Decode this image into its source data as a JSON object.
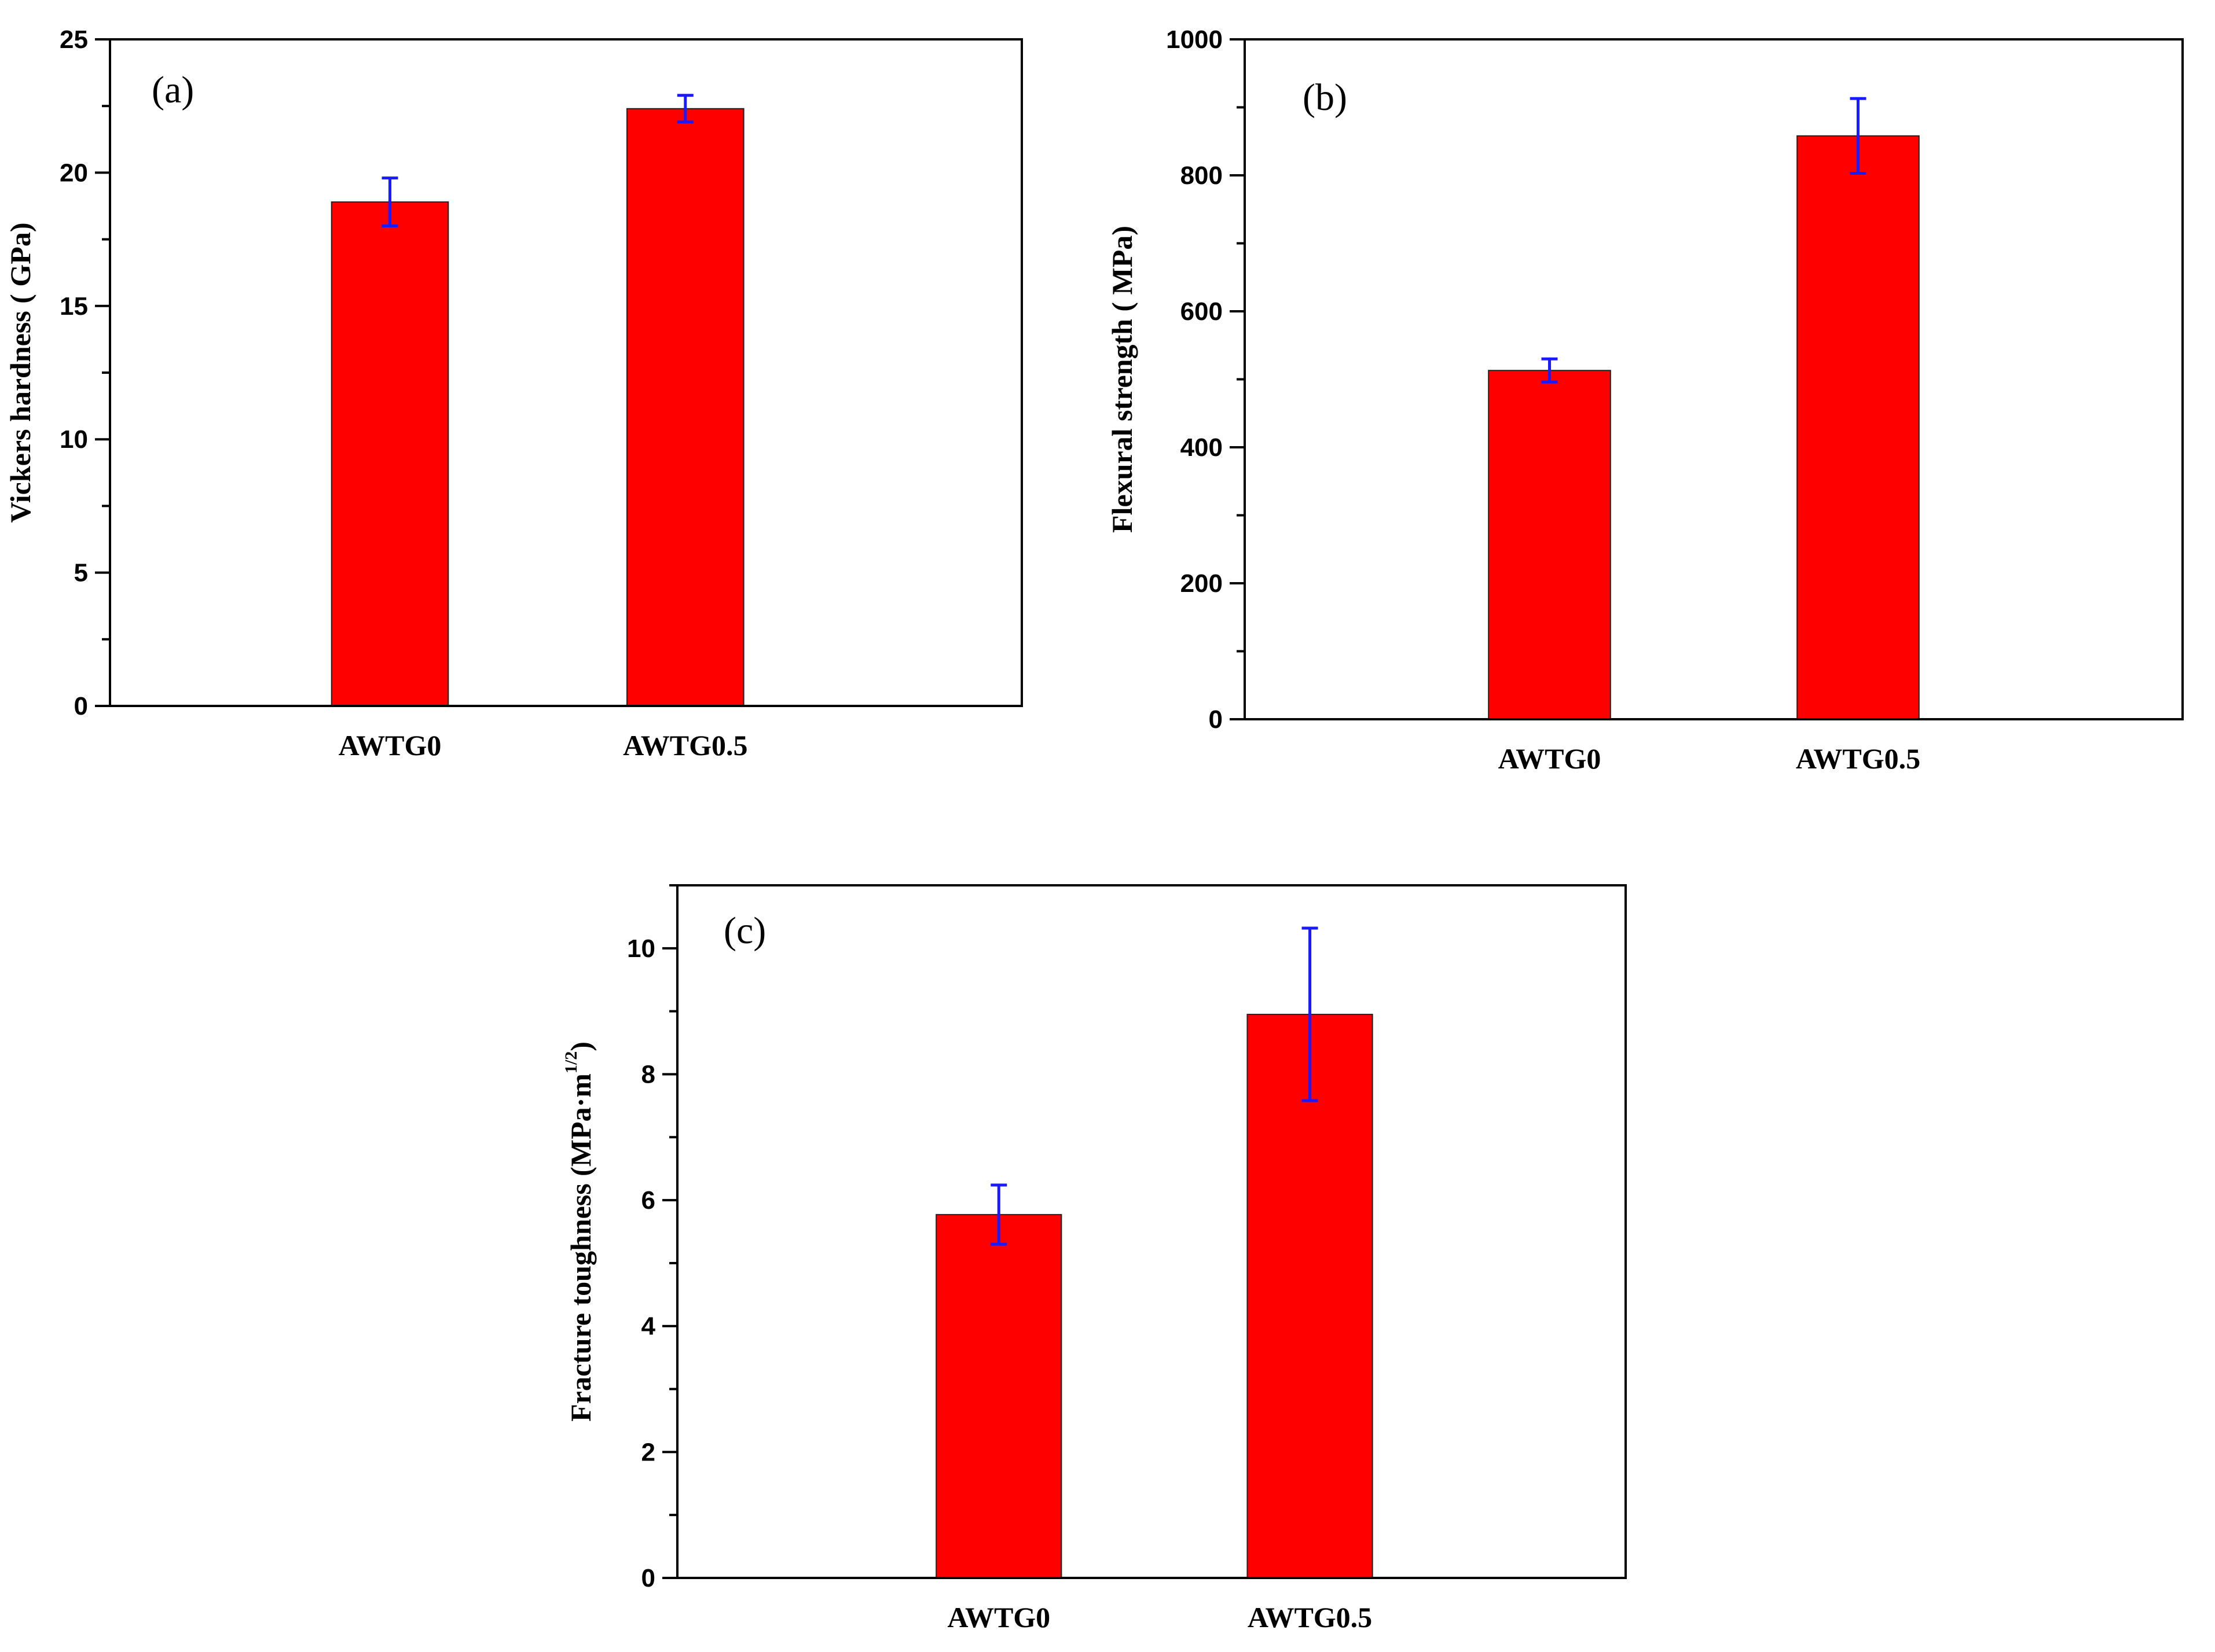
{
  "colors": {
    "bar": "#ff0000",
    "error_bar": "#1a1aff",
    "axis": "#000000"
  },
  "chart_data": [
    {
      "id": "a",
      "type": "bar",
      "panel_label": "(a)",
      "title": "",
      "xlabel": "",
      "ylabel": "Vickers hardness ( GPa)",
      "categories": [
        "AWTG0",
        "AWTG0.5"
      ],
      "values": [
        18.9,
        22.4
      ],
      "errors": [
        0.9,
        0.5
      ],
      "ylim": [
        0,
        25
      ],
      "major_ticks": [
        0,
        5,
        10,
        15,
        20,
        25
      ],
      "tick_labels": [
        "0",
        "5",
        "10",
        "15",
        "20",
        "25"
      ],
      "minor_step": 2.5,
      "grid": false
    },
    {
      "id": "b",
      "type": "bar",
      "panel_label": "(b)",
      "title": "",
      "xlabel": "",
      "ylabel": "Flexural strength ( MPa)",
      "categories": [
        "AWTG0",
        "AWTG0.5"
      ],
      "values": [
        513,
        858
      ],
      "errors": [
        17,
        55
      ],
      "ylim": [
        0,
        1000
      ],
      "major_ticks": [
        0,
        200,
        400,
        600,
        800,
        1000
      ],
      "tick_labels": [
        "0",
        "200",
        "400",
        "600",
        "800",
        "1000"
      ],
      "minor_step": 100,
      "grid": false
    },
    {
      "id": "c",
      "type": "bar",
      "panel_label": "(c)",
      "title": "",
      "xlabel": "",
      "ylabel": "Fracture toughness (MPa·m",
      "ylabel_sup": "1/2",
      "ylabel_tail": ")",
      "categories": [
        "AWTG0",
        "AWTG0.5"
      ],
      "values": [
        5.77,
        8.95
      ],
      "errors": [
        0.47,
        1.37
      ],
      "ylim": [
        0,
        11
      ],
      "major_ticks": [
        0,
        2,
        4,
        6,
        8,
        10
      ],
      "tick_labels": [
        "0",
        "2",
        "4",
        "6",
        "8",
        "10"
      ],
      "minor_step": 1,
      "grid": false
    }
  ]
}
